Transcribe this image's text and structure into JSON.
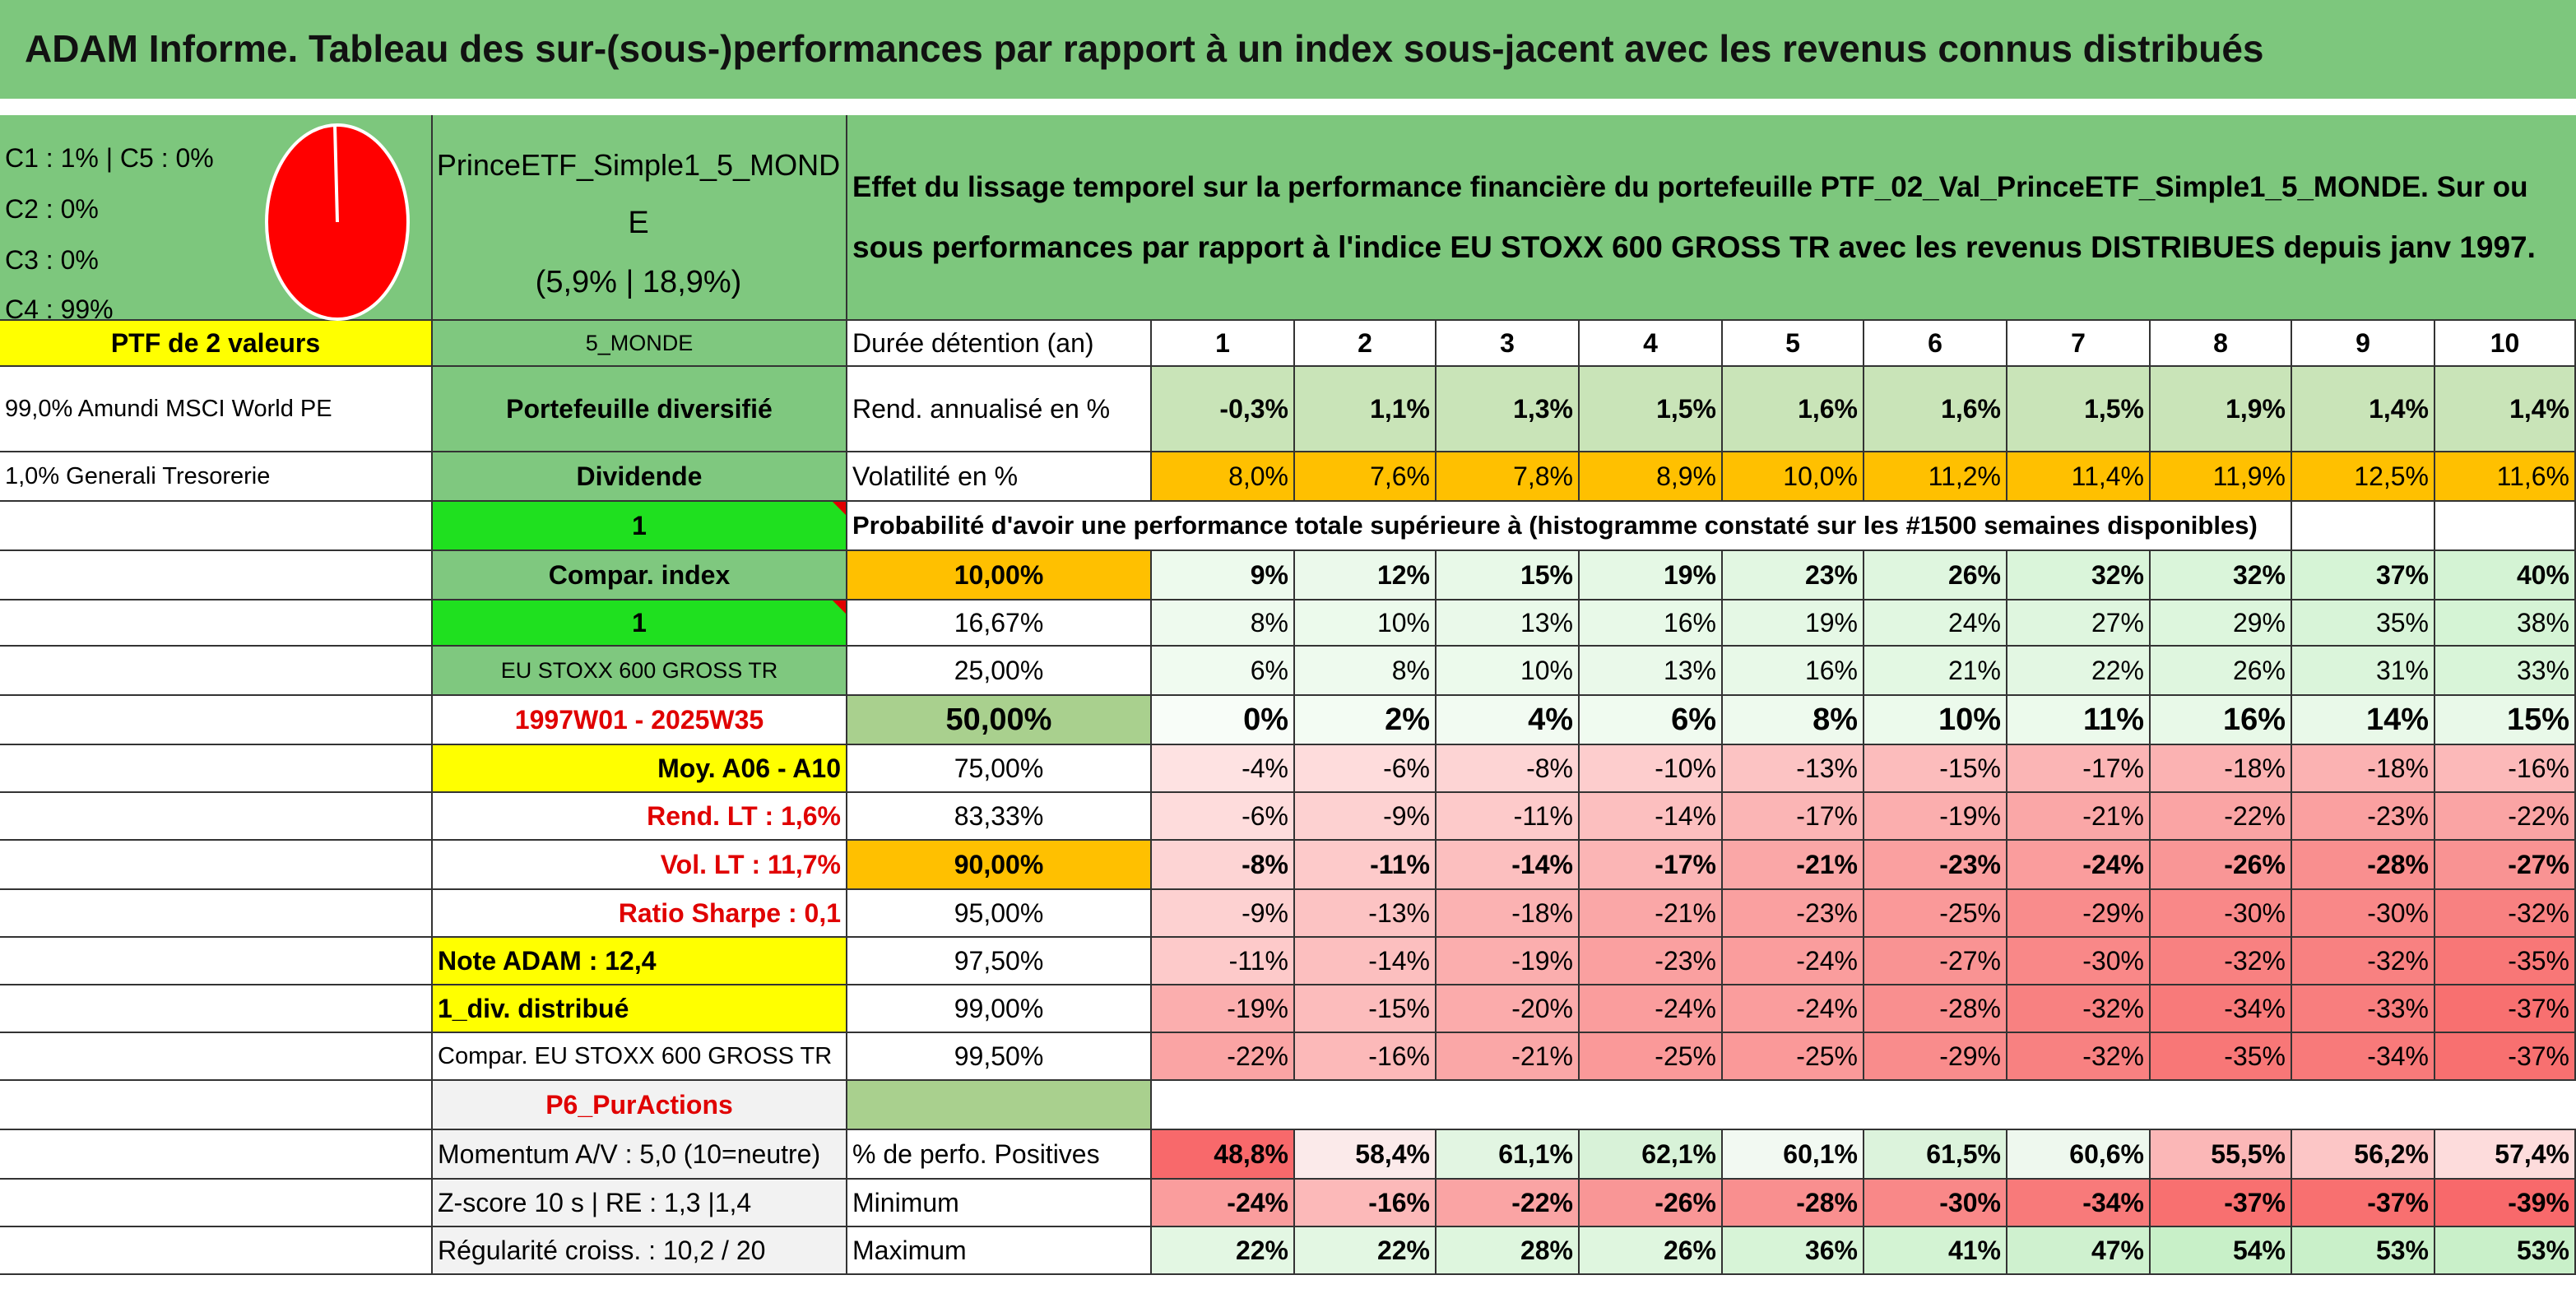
{
  "title": "ADAM Informe. Tableau des sur-(sous-)performances par rapport à un index sous-jacent avec les revenus connus distribués",
  "header": {
    "legend": [
      "C1 : 1% | C5 : 0%",
      "C2 : 0%",
      "C3 : 0%",
      "C4 : 99%"
    ],
    "portfolio": [
      "PrinceETF_Simple1_5_MOND",
      "E",
      "(5,9% | 18,9%)"
    ],
    "description": [
      "Effet du lissage temporel sur la performance financière du portefeuille PTF_02_Val_PrinceETF_Simple1_5_MONDE. Sur ou",
      "sous performances par rapport à l'indice EU STOXX 600 GROSS TR avec les revenus DISTRIBUES depuis janv 1997."
    ]
  },
  "table": {
    "rows": [
      {
        "cells": [
          "PTF de 2 valeurs",
          "5_MONDE",
          "Durée détention (an)",
          "1",
          "2",
          "3",
          "4",
          "5",
          "6",
          "7",
          "8",
          "9",
          "10"
        ],
        "fills": [
          "#ffff00",
          "#7fc87f",
          null,
          null,
          null,
          null,
          null,
          null,
          null,
          null,
          null,
          null,
          null
        ]
      },
      {
        "cells": [
          "99,0% Amundi MSCI World PE",
          "Portefeuille diversifié",
          "Rend. annualisé en %",
          "-0,3%",
          "1,1%",
          "1,3%",
          "1,5%",
          "1,6%",
          "1,6%",
          "1,5%",
          "1,9%",
          "1,4%",
          "1,4%"
        ],
        "fills": [
          null,
          "#7fc87f",
          null,
          "#c9e4b8",
          "#c9e4b8",
          "#c9e4b8",
          "#c9e4b8",
          "#c9e4b8",
          "#c9e4b8",
          "#c9e4b8",
          "#c9e4b8",
          "#c9e4b8",
          "#c9e4b8"
        ]
      },
      {
        "cells": [
          "1,0% Generali Tresorerie",
          "Dividende",
          "Volatilité en %",
          "8,0%",
          "7,6%",
          "7,8%",
          "8,9%",
          "10,0%",
          "11,2%",
          "11,4%",
          "11,9%",
          "12,5%",
          "11,6%"
        ],
        "fills": [
          null,
          "#7fc87f",
          null,
          "#ffc000",
          "#ffc000",
          "#ffc000",
          "#ffc000",
          "#ffc000",
          "#ffc000",
          "#ffc000",
          "#ffc000",
          "#ffc000",
          "#ffc000"
        ]
      },
      {
        "cells": [
          null,
          "1",
          "Probabilité d'avoir une performance totale supérieure à (histogramme constaté sur les #1500 semaines disponibles)",
          null,
          null,
          null,
          null,
          null,
          null,
          null,
          null,
          null,
          null
        ],
        "fills": [
          null,
          "#1fe01f",
          null,
          null,
          null,
          null,
          null,
          null,
          null,
          null,
          null,
          null,
          null
        ]
      },
      {
        "cells": [
          null,
          "Compar. index",
          "10,00%",
          "9%",
          "12%",
          "15%",
          "19%",
          "23%",
          "26%",
          "32%",
          "32%",
          "37%",
          "40%"
        ],
        "fills": [
          null,
          "#7fc87f",
          "#ffc000",
          "#edfaed",
          "#ebf9eb",
          "#e8f9e8",
          "#e5f8e5",
          "#e2f7e2",
          "#dff6df",
          "#daf5da",
          "#daf5da",
          "#d6f4d6",
          "#d4f3d4"
        ]
      },
      {
        "cells": [
          null,
          "1",
          "16,67%",
          "8%",
          "10%",
          "13%",
          "16%",
          "19%",
          "24%",
          "27%",
          "29%",
          "35%",
          "38%"
        ],
        "fills": [
          null,
          "#1fe01f",
          null,
          "#eefaee",
          "#ecfaec",
          "#eaf9ea",
          "#e8f9e8",
          "#e5f8e5",
          "#e1f7e1",
          "#dff6df",
          "#ddf6dd",
          "#d8f4d8",
          "#d5f4d5"
        ]
      },
      {
        "cells": [
          null,
          "EU STOXX 600 GROSS TR",
          "25,00%",
          "6%",
          "8%",
          "10%",
          "13%",
          "16%",
          "21%",
          "22%",
          "26%",
          "31%",
          "33%"
        ],
        "fills": [
          null,
          "#7fc87f",
          null,
          "#f0fbf0",
          "#eefaee",
          "#ecfaec",
          "#eaf9ea",
          "#e8f9e8",
          "#e3f8e3",
          "#e3f7e3",
          "#dff6df",
          "#dbf5db",
          "#d9f5d9"
        ]
      },
      {
        "cells": [
          null,
          "1997W01 - 2025W35",
          "50,00%",
          "0%",
          "2%",
          "4%",
          "6%",
          "8%",
          "10%",
          "11%",
          "16%",
          "14%",
          "15%"
        ],
        "fills": [
          null,
          null,
          "#a9d08e",
          "#f8fdf8",
          "#f3fcf3",
          "#f2fbf2",
          "#f0fbf0",
          "#eefaee",
          "#ecfaec",
          "#ecfaec",
          "#e8f9e8",
          "#e9f9e9",
          "#e9f9e9"
        ]
      },
      {
        "cells": [
          null,
          "Moy. A06 - A10",
          "75,00%",
          "-4%",
          "-6%",
          "-8%",
          "-10%",
          "-13%",
          "-15%",
          "-17%",
          "-18%",
          "-18%",
          "-16%"
        ],
        "fills": [
          null,
          "#ffff00",
          null,
          "#fee2e2",
          "#fedcdc",
          "#fdd4d4",
          "#fdcdcd",
          "#fcc3c3",
          "#fcbcbc",
          "#fbb5b5",
          "#fbb2b2",
          "#fbb2b2",
          "#fcb9b9"
        ]
      },
      {
        "cells": [
          null,
          "Rend. LT : 1,6%",
          "83,33%",
          "-6%",
          "-9%",
          "-11%",
          "-14%",
          "-17%",
          "-19%",
          "-21%",
          "-22%",
          "-23%",
          "-22%"
        ],
        "fills": [
          null,
          null,
          null,
          "#fedcdc",
          "#fdd1d1",
          "#fdcaca",
          "#fcbfbf",
          "#fbb5b5",
          "#fbaeae",
          "#faa7a7",
          "#faa4a4",
          "#faa0a0",
          "#faa4a4"
        ]
      },
      {
        "cells": [
          null,
          "Vol. LT : 11,7%",
          "90,00%",
          "-8%",
          "-11%",
          "-14%",
          "-17%",
          "-21%",
          "-23%",
          "-24%",
          "-26%",
          "-28%",
          "-27%"
        ],
        "fills": [
          null,
          null,
          "#ffc000",
          "#fdd4d4",
          "#fdcaca",
          "#fcbfbf",
          "#fbb5b5",
          "#faa7a7",
          "#faa0a0",
          "#fa9d9d",
          "#f99696",
          "#f98f8f",
          "#f99393"
        ]
      },
      {
        "cells": [
          null,
          "Ratio Sharpe : 0,1",
          "95,00%",
          "-9%",
          "-13%",
          "-18%",
          "-21%",
          "-23%",
          "-25%",
          "-29%",
          "-30%",
          "-30%",
          "-32%"
        ],
        "fills": [
          null,
          null,
          null,
          "#fdd1d1",
          "#fcc3c3",
          "#fbb2b2",
          "#faa7a7",
          "#faa0a0",
          "#fa9999",
          "#f98c8c",
          "#f98888",
          "#f98888",
          "#f88181"
        ]
      },
      {
        "cells": [
          null,
          "Note ADAM : 12,4",
          "97,50%",
          "-11%",
          "-14%",
          "-19%",
          "-23%",
          "-24%",
          "-27%",
          "-30%",
          "-32%",
          "-32%",
          "-35%"
        ],
        "fills": [
          null,
          "#ffff00",
          null,
          "#fdcaca",
          "#fcbfbf",
          "#fbaeae",
          "#faa0a0",
          "#fa9d9d",
          "#f99393",
          "#f98888",
          "#f88181",
          "#f88181",
          "#f87777"
        ]
      },
      {
        "cells": [
          null,
          "1_div. distribué",
          "99,00%",
          "-19%",
          "-15%",
          "-20%",
          "-24%",
          "-24%",
          "-28%",
          "-32%",
          "-34%",
          "-33%",
          "-37%"
        ],
        "fills": [
          null,
          "#ffff00",
          null,
          "#fbaeae",
          "#fcbcbc",
          "#fbabab",
          "#fa9d9d",
          "#fa9d9d",
          "#f98f8f",
          "#f88181",
          "#f87a7a",
          "#f87e7e",
          "#f87070"
        ]
      },
      {
        "cells": [
          null,
          "Compar. EU STOXX 600 GROSS TR",
          "99,50%",
          "-22%",
          "-16%",
          "-21%",
          "-25%",
          "-25%",
          "-29%",
          "-32%",
          "-35%",
          "-34%",
          "-37%"
        ],
        "fills": [
          null,
          null,
          null,
          "#faa4a4",
          "#fcb9b9",
          "#faa7a7",
          "#fa9999",
          "#fa9999",
          "#f98c8c",
          "#f88181",
          "#f87777",
          "#f87a7a",
          "#f87070"
        ]
      },
      {
        "cells": [
          null,
          "P6_PurActions",
          null,
          null,
          null,
          null,
          null,
          null,
          null,
          null,
          null,
          null,
          null
        ],
        "fills": [
          null,
          "#f2f2f2",
          "#a9d08e",
          null,
          null,
          null,
          null,
          null,
          null,
          null,
          null,
          null,
          null
        ]
      },
      {
        "cells": [
          null,
          "Momentum A/V : 5,0 (10=neutre)",
          "% de perfo. Positives",
          "48,8%",
          "58,4%",
          "61,1%",
          "62,1%",
          "60,1%",
          "61,5%",
          "60,6%",
          "55,5%",
          "56,2%",
          "57,4%"
        ],
        "fills": [
          null,
          "#f2f2f2",
          null,
          "#f8696b",
          "#fbeaea",
          "#e2f5e2",
          "#d8f2d8",
          "#f2f9f2",
          "#dcf3dc",
          "#eef8ee",
          "#fbb7b7",
          "#fcc6c6",
          "#fddcdc"
        ]
      },
      {
        "cells": [
          null,
          "Z-score 10 s | RE : 1,3 |1,4",
          "Minimum",
          "-24%",
          "-16%",
          "-22%",
          "-26%",
          "-28%",
          "-30%",
          "-34%",
          "-37%",
          "-37%",
          "-39%"
        ],
        "fills": [
          null,
          "#f2f2f2",
          null,
          "#fa9d9d",
          "#fcb9b9",
          "#faa4a4",
          "#f99696",
          "#f98f8f",
          "#f98888",
          "#f87a7a",
          "#f87070",
          "#f87070",
          "#f8696b"
        ]
      },
      {
        "cells": [
          null,
          "Régularité croiss. : 10,2 / 20",
          "Maximum",
          "22%",
          "22%",
          "28%",
          "26%",
          "36%",
          "41%",
          "47%",
          "54%",
          "53%",
          "53%"
        ],
        "fills": [
          null,
          "#f2f2f2",
          null,
          "#e3f7e3",
          "#e3f7e3",
          "#def6de",
          "#dff6df",
          "#d7f4d7",
          "#d3f3d3",
          "#cff1cf",
          "#c8f0c8",
          "#c9f0c9",
          "#c9f0c9"
        ]
      }
    ]
  }
}
